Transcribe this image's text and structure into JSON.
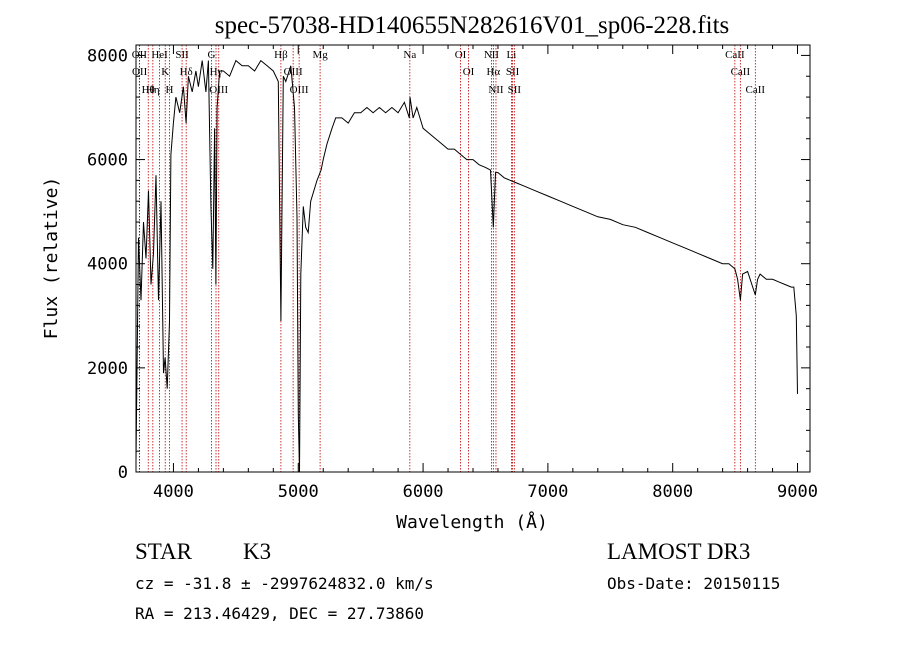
{
  "chart_data": {
    "type": "line",
    "title": "spec-57038-HD140655N282616V01_sp06-228.fits",
    "xlabel": "Wavelength (Å)",
    "ylabel": "Flux (relative)",
    "xlim": [
      3700,
      9100
    ],
    "ylim": [
      0,
      8200
    ],
    "xticks": [
      4000,
      5000,
      6000,
      7000,
      8000,
      9000
    ],
    "yticks": [
      0,
      2000,
      4000,
      6000,
      8000
    ],
    "grid": false,
    "series": [
      {
        "x": [
          3700,
          3720,
          3740,
          3760,
          3780,
          3800,
          3820,
          3840,
          3860,
          3880,
          3900,
          3920,
          3933,
          3950,
          3968,
          3980,
          4000,
          4020,
          4050,
          4080,
          4101,
          4120,
          4150,
          4180,
          4200,
          4230,
          4260,
          4280,
          4300,
          4315,
          4330,
          4340,
          4350,
          4370,
          4400,
          4450,
          4500,
          4550,
          4600,
          4650,
          4700,
          4750,
          4800,
          4840,
          4861,
          4880,
          4900,
          4940,
          4970,
          4990,
          5000,
          5010,
          5020,
          5040,
          5060,
          5080,
          5100,
          5150,
          5183,
          5200,
          5230,
          5270,
          5300,
          5350,
          5400,
          5450,
          5500,
          5550,
          5600,
          5650,
          5700,
          5750,
          5800,
          5850,
          5890,
          5895,
          5920,
          5950,
          6000,
          6050,
          6100,
          6150,
          6200,
          6250,
          6300,
          6350,
          6400,
          6450,
          6500,
          6540,
          6563,
          6580,
          6600,
          6650,
          6700,
          6750,
          6800,
          6900,
          7000,
          7100,
          7200,
          7300,
          7400,
          7500,
          7600,
          7700,
          7800,
          7900,
          8000,
          8100,
          8200,
          8300,
          8400,
          8450,
          8498,
          8520,
          8542,
          8560,
          8600,
          8662,
          8680,
          8700,
          8750,
          8800,
          8850,
          8900,
          8950,
          8970,
          8990,
          9000
        ],
        "values": [
          200,
          4500,
          3300,
          4800,
          4100,
          5400,
          3600,
          4200,
          5700,
          3300,
          5200,
          1900,
          2200,
          1600,
          2900,
          6100,
          6700,
          7200,
          6900,
          7400,
          6700,
          7600,
          7300,
          7700,
          7400,
          7900,
          7300,
          7900,
          5100,
          3900,
          6600,
          3600,
          7000,
          7700,
          7700,
          7600,
          7900,
          7800,
          7800,
          7700,
          7900,
          7800,
          7700,
          7500,
          2900,
          7600,
          7500,
          7800,
          7000,
          4900,
          1100,
          0,
          3800,
          5100,
          4700,
          4600,
          5200,
          5600,
          5800,
          6000,
          6300,
          6600,
          6800,
          6800,
          6700,
          6900,
          6900,
          7000,
          6900,
          7000,
          6900,
          7000,
          6900,
          7100,
          6800,
          7200,
          6800,
          7000,
          6600,
          6500,
          6400,
          6300,
          6200,
          6200,
          6100,
          6000,
          6000,
          5900,
          5850,
          5800,
          4700,
          5750,
          5750,
          5650,
          5600,
          5550,
          5500,
          5400,
          5300,
          5200,
          5100,
          5000,
          4900,
          4850,
          4750,
          4700,
          4600,
          4500,
          4400,
          4300,
          4200,
          4100,
          4000,
          4000,
          3900,
          3700,
          3300,
          3800,
          3850,
          3400,
          3700,
          3800,
          3700,
          3700,
          3650,
          3600,
          3550,
          3550,
          3000,
          1500
        ]
      }
    ],
    "annotations": [
      {
        "label": "Hθ",
        "x": 3798
      },
      {
        "label": "OII",
        "x": 3727
      },
      {
        "label": "OII",
        "x": 3729
      },
      {
        "label": "Hη",
        "x": 3835
      },
      {
        "label": "HeI",
        "x": 3889
      },
      {
        "label": "K",
        "x": 3934
      },
      {
        "label": "H",
        "x": 3968
      },
      {
        "label": "SII",
        "x": 4069
      },
      {
        "label": "Hδ",
        "x": 4102
      },
      {
        "label": "G",
        "x": 4305
      },
      {
        "label": "Hγ",
        "x": 4341
      },
      {
        "label": "OIII",
        "x": 4363
      },
      {
        "label": "Hβ",
        "x": 4861
      },
      {
        "label": "OIII",
        "x": 4959
      },
      {
        "label": "OIII",
        "x": 5007
      },
      {
        "label": "Mg",
        "x": 5175
      },
      {
        "label": "Na",
        "x": 5894
      },
      {
        "label": "OI",
        "x": 6300
      },
      {
        "label": "OI",
        "x": 6364
      },
      {
        "label": "NII",
        "x": 6548
      },
      {
        "label": "Hα",
        "x": 6563
      },
      {
        "label": "NII",
        "x": 6584
      },
      {
        "label": "Li",
        "x": 6708
      },
      {
        "label": "SII",
        "x": 6717
      },
      {
        "label": "SII",
        "x": 6731
      },
      {
        "label": "CaII",
        "x": 8498
      },
      {
        "label": "CaII",
        "x": 8542
      },
      {
        "label": "CaII",
        "x": 8662
      }
    ]
  },
  "info": {
    "class": "STAR",
    "subclass": "K3",
    "survey": "LAMOST DR3",
    "cz": "cz = -31.8 ± -2997624832.0 km/s",
    "obsdate": "Obs-Date: 20150115",
    "radec": "RA = 213.46429, DEC =  27.73860"
  },
  "colors": {
    "spectrum": "#000000",
    "line_marker": "#c00000"
  }
}
